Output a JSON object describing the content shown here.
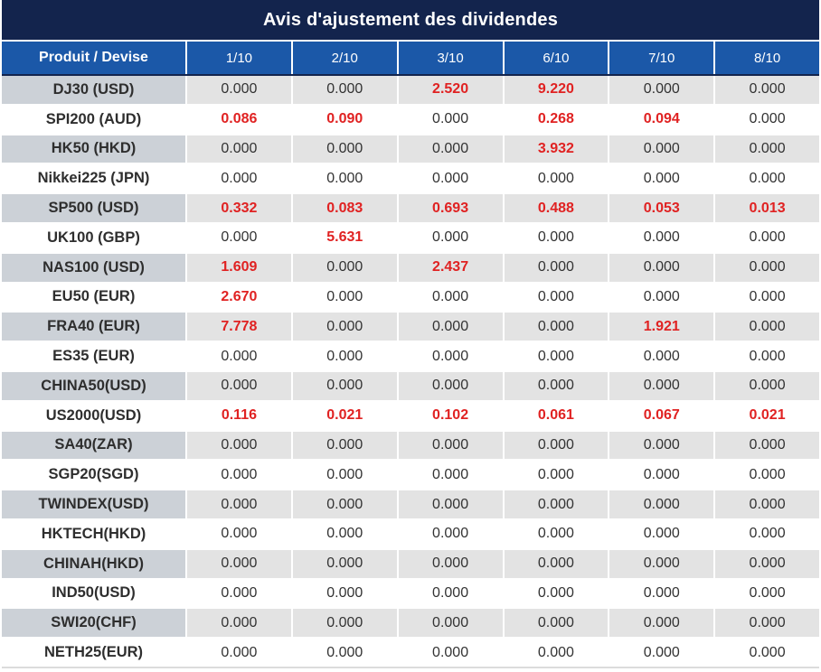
{
  "title": "Avis d'ajustement des dividendes",
  "colors": {
    "title_bar_navy": "#13244d",
    "header_blue": "#1b58a8",
    "negative_red": "#e02222",
    "shaded_product_cell": "#ccd1d7",
    "shaded_value_cell": "#e3e3e3",
    "text_dark": "#333333"
  },
  "table": {
    "columns": [
      "Produit / Devise",
      "1/10",
      "2/10",
      "3/10",
      "6/10",
      "7/10",
      "8/10"
    ],
    "rows": [
      {
        "product": "DJ30 (USD)",
        "values": [
          "0.000",
          "0.000",
          "2.520",
          "9.220",
          "0.000",
          "0.000"
        ],
        "red": [
          false,
          false,
          true,
          true,
          false,
          false
        ]
      },
      {
        "product": "SPI200 (AUD)",
        "values": [
          "0.086",
          "0.090",
          "0.000",
          "0.268",
          "0.094",
          "0.000"
        ],
        "red": [
          true,
          true,
          false,
          true,
          true,
          false
        ]
      },
      {
        "product": "HK50 (HKD)",
        "values": [
          "0.000",
          "0.000",
          "0.000",
          "3.932",
          "0.000",
          "0.000"
        ],
        "red": [
          false,
          false,
          false,
          true,
          false,
          false
        ]
      },
      {
        "product": "Nikkei225 (JPN)",
        "values": [
          "0.000",
          "0.000",
          "0.000",
          "0.000",
          "0.000",
          "0.000"
        ],
        "red": [
          false,
          false,
          false,
          false,
          false,
          false
        ]
      },
      {
        "product": "SP500 (USD)",
        "values": [
          "0.332",
          "0.083",
          "0.693",
          "0.488",
          "0.053",
          "0.013"
        ],
        "red": [
          true,
          true,
          true,
          true,
          true,
          true
        ]
      },
      {
        "product": "UK100 (GBP)",
        "values": [
          "0.000",
          "5.631",
          "0.000",
          "0.000",
          "0.000",
          "0.000"
        ],
        "red": [
          false,
          true,
          false,
          false,
          false,
          false
        ]
      },
      {
        "product": "NAS100 (USD)",
        "values": [
          "1.609",
          "0.000",
          "2.437",
          "0.000",
          "0.000",
          "0.000"
        ],
        "red": [
          true,
          false,
          true,
          false,
          false,
          false
        ]
      },
      {
        "product": "EU50 (EUR)",
        "values": [
          "2.670",
          "0.000",
          "0.000",
          "0.000",
          "0.000",
          "0.000"
        ],
        "red": [
          true,
          false,
          false,
          false,
          false,
          false
        ]
      },
      {
        "product": "FRA40 (EUR)",
        "values": [
          "7.778",
          "0.000",
          "0.000",
          "0.000",
          "1.921",
          "0.000"
        ],
        "red": [
          true,
          false,
          false,
          false,
          true,
          false
        ]
      },
      {
        "product": "ES35 (EUR)",
        "values": [
          "0.000",
          "0.000",
          "0.000",
          "0.000",
          "0.000",
          "0.000"
        ],
        "red": [
          false,
          false,
          false,
          false,
          false,
          false
        ]
      },
      {
        "product": "CHINA50(USD)",
        "values": [
          "0.000",
          "0.000",
          "0.000",
          "0.000",
          "0.000",
          "0.000"
        ],
        "red": [
          false,
          false,
          false,
          false,
          false,
          false
        ]
      },
      {
        "product": "US2000(USD)",
        "values": [
          "0.116",
          "0.021",
          "0.102",
          "0.061",
          "0.067",
          "0.021"
        ],
        "red": [
          true,
          true,
          true,
          true,
          true,
          true
        ]
      },
      {
        "product": "SA40(ZAR)",
        "values": [
          "0.000",
          "0.000",
          "0.000",
          "0.000",
          "0.000",
          "0.000"
        ],
        "red": [
          false,
          false,
          false,
          false,
          false,
          false
        ]
      },
      {
        "product": "SGP20(SGD)",
        "values": [
          "0.000",
          "0.000",
          "0.000",
          "0.000",
          "0.000",
          "0.000"
        ],
        "red": [
          false,
          false,
          false,
          false,
          false,
          false
        ]
      },
      {
        "product": "TWINDEX(USD)",
        "values": [
          "0.000",
          "0.000",
          "0.000",
          "0.000",
          "0.000",
          "0.000"
        ],
        "red": [
          false,
          false,
          false,
          false,
          false,
          false
        ]
      },
      {
        "product": "HKTECH(HKD)",
        "values": [
          "0.000",
          "0.000",
          "0.000",
          "0.000",
          "0.000",
          "0.000"
        ],
        "red": [
          false,
          false,
          false,
          false,
          false,
          false
        ]
      },
      {
        "product": "CHINAH(HKD)",
        "values": [
          "0.000",
          "0.000",
          "0.000",
          "0.000",
          "0.000",
          "0.000"
        ],
        "red": [
          false,
          false,
          false,
          false,
          false,
          false
        ]
      },
      {
        "product": "IND50(USD)",
        "values": [
          "0.000",
          "0.000",
          "0.000",
          "0.000",
          "0.000",
          "0.000"
        ],
        "red": [
          false,
          false,
          false,
          false,
          false,
          false
        ]
      },
      {
        "product": "SWI20(CHF)",
        "values": [
          "0.000",
          "0.000",
          "0.000",
          "0.000",
          "0.000",
          "0.000"
        ],
        "red": [
          false,
          false,
          false,
          false,
          false,
          false
        ]
      },
      {
        "product": "NETH25(EUR)",
        "values": [
          "0.000",
          "0.000",
          "0.000",
          "0.000",
          "0.000",
          "0.000"
        ],
        "red": [
          false,
          false,
          false,
          false,
          false,
          false
        ]
      }
    ]
  }
}
